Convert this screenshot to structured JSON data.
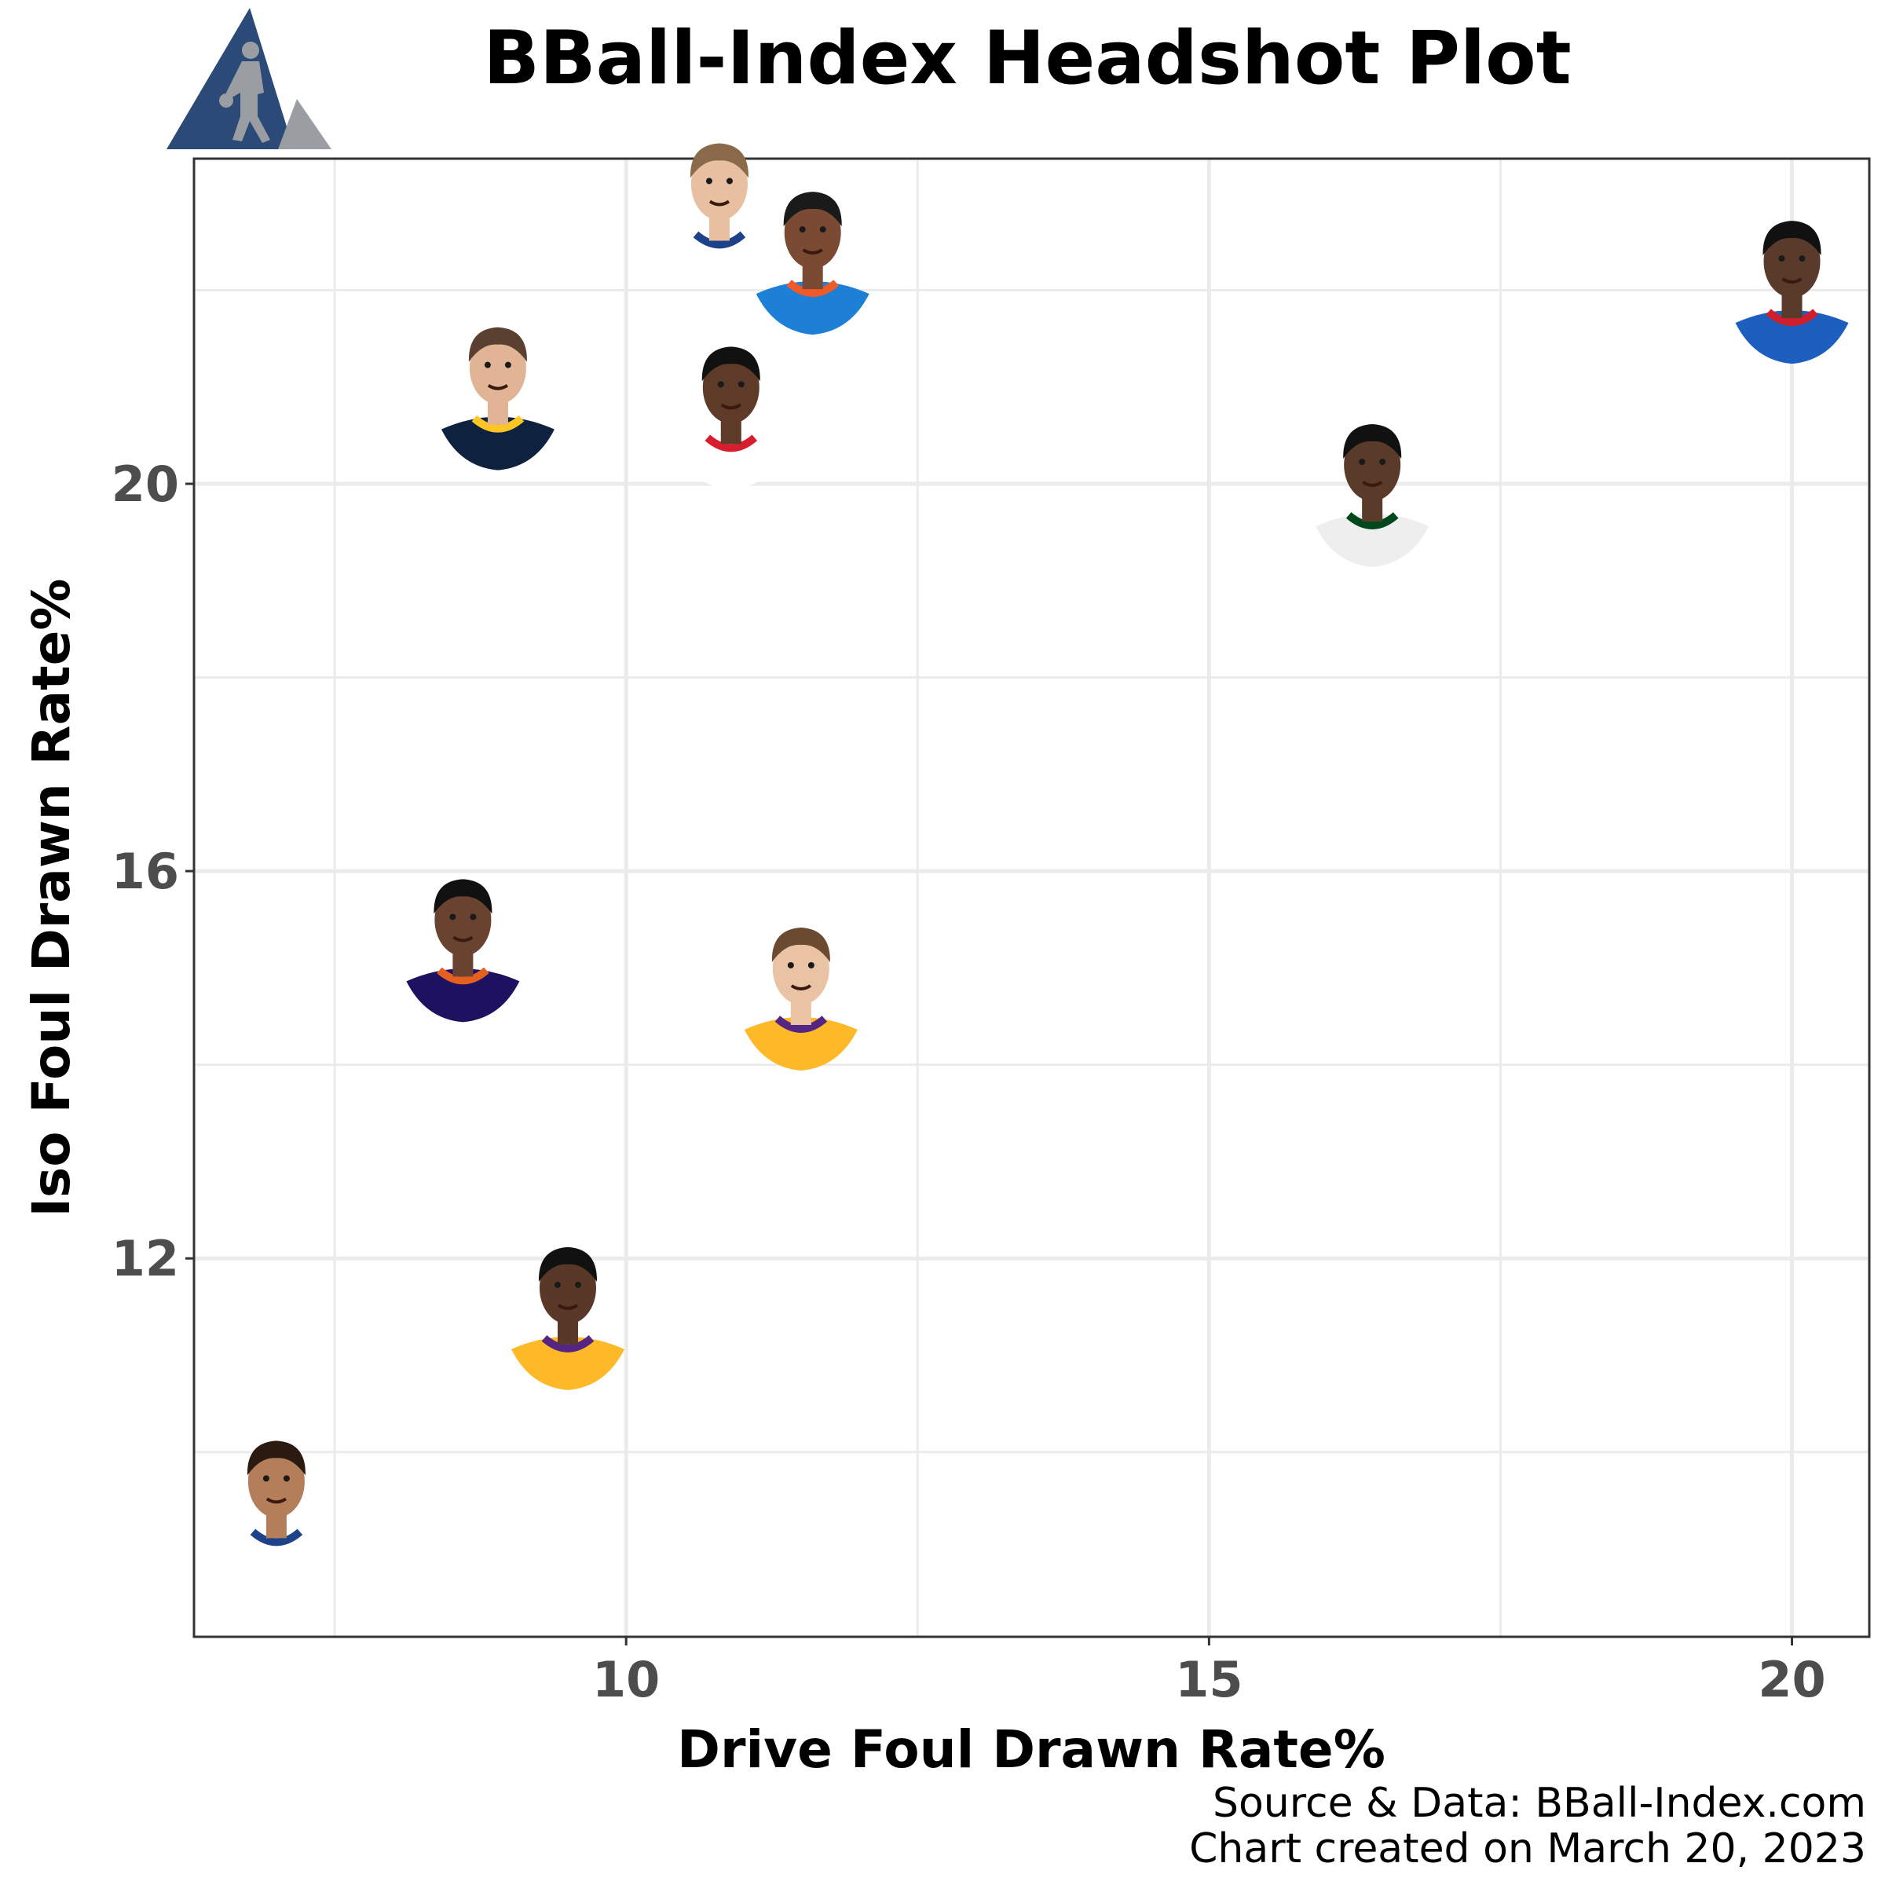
{
  "title": "BBall-Index Headshot Plot",
  "footer": {
    "source": "Source & Data: BBall-Index.com",
    "created": "Chart created on March 20, 2023"
  },
  "colors": {
    "logo_blue": "#2b4a78",
    "logo_grey": "#9a9ea3",
    "grid": "#ebebeb",
    "panel_border": "#333333",
    "tick_text": "#4d4d4d"
  },
  "chart_data": {
    "type": "scatter",
    "xlabel": "Drive Foul Drawn Rate%",
    "ylabel": "Iso Foul Drawn Rate%",
    "xlim": [
      6.3,
      20.65
    ],
    "ylim": [
      8.1,
      23.35
    ],
    "xticks": [
      10,
      15,
      20
    ],
    "yticks": [
      12,
      16,
      20
    ],
    "grid": true,
    "marker": "player headshot",
    "points": [
      {
        "x": 10.8,
        "y": 22.3,
        "jersey": "#ffffff",
        "trim": "#1d428a",
        "skin": "#e8bfa0",
        "hair": "#8a6a4a"
      },
      {
        "x": 11.6,
        "y": 21.8,
        "jersey": "#1e7fd6",
        "trim": "#f05a28",
        "skin": "#7a4a32",
        "hair": "#1a1a1a"
      },
      {
        "x": 20.0,
        "y": 21.5,
        "jersey": "#1d5fbf",
        "trim": "#d0202e",
        "skin": "#5a3a2a",
        "hair": "#111111"
      },
      {
        "x": 8.9,
        "y": 20.4,
        "jersey": "#0e2240",
        "trim": "#fec524",
        "skin": "#e0b495",
        "hair": "#5a4030"
      },
      {
        "x": 10.9,
        "y": 20.2,
        "jersey": "#ffffff",
        "trim": "#d81e2e",
        "skin": "#5e3a28",
        "hair": "#111111"
      },
      {
        "x": 16.4,
        "y": 19.4,
        "jersey": "#eeeeee",
        "trim": "#00471b",
        "skin": "#5a3a28",
        "hair": "#111111"
      },
      {
        "x": 8.6,
        "y": 14.7,
        "jersey": "#1d1160",
        "trim": "#e56020",
        "skin": "#6a4230",
        "hair": "#111111"
      },
      {
        "x": 11.5,
        "y": 14.2,
        "jersey": "#fdb927",
        "trim": "#552583",
        "skin": "#eac3a5",
        "hair": "#6a4a30"
      },
      {
        "x": 9.5,
        "y": 10.9,
        "jersey": "#fdb927",
        "trim": "#552583",
        "skin": "#5a3828",
        "hair": "#111111"
      },
      {
        "x": 7.0,
        "y": 8.9,
        "jersey": "#ffffff",
        "trim": "#1d428a",
        "skin": "#b47e5a",
        "hair": "#2a1a10"
      }
    ]
  }
}
